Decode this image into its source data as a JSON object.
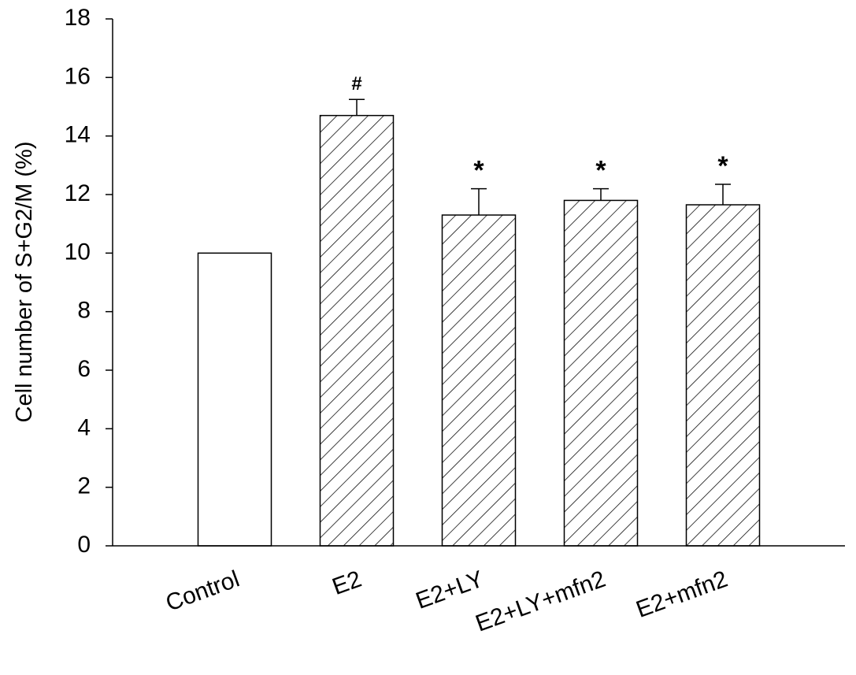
{
  "chart_data": {
    "type": "bar",
    "y_label": "Cell number of S+G2/M (%)",
    "categories": [
      "Control",
      "E2",
      "E2+LY",
      "E2+LY+mfn2",
      "E2+mfn2"
    ],
    "values": [
      10,
      14.7,
      11.3,
      11.8,
      11.65
    ],
    "errors": [
      null,
      0.55,
      0.9,
      0.4,
      0.7
    ],
    "annotations": [
      null,
      "#",
      "*",
      "*",
      "*"
    ],
    "hatch": [
      false,
      true,
      true,
      true,
      true
    ],
    "color": "#ffffff",
    "ylim": [
      0,
      18
    ],
    "yticks": [
      0,
      2,
      4,
      6,
      8,
      10,
      12,
      14,
      16,
      18
    ]
  }
}
